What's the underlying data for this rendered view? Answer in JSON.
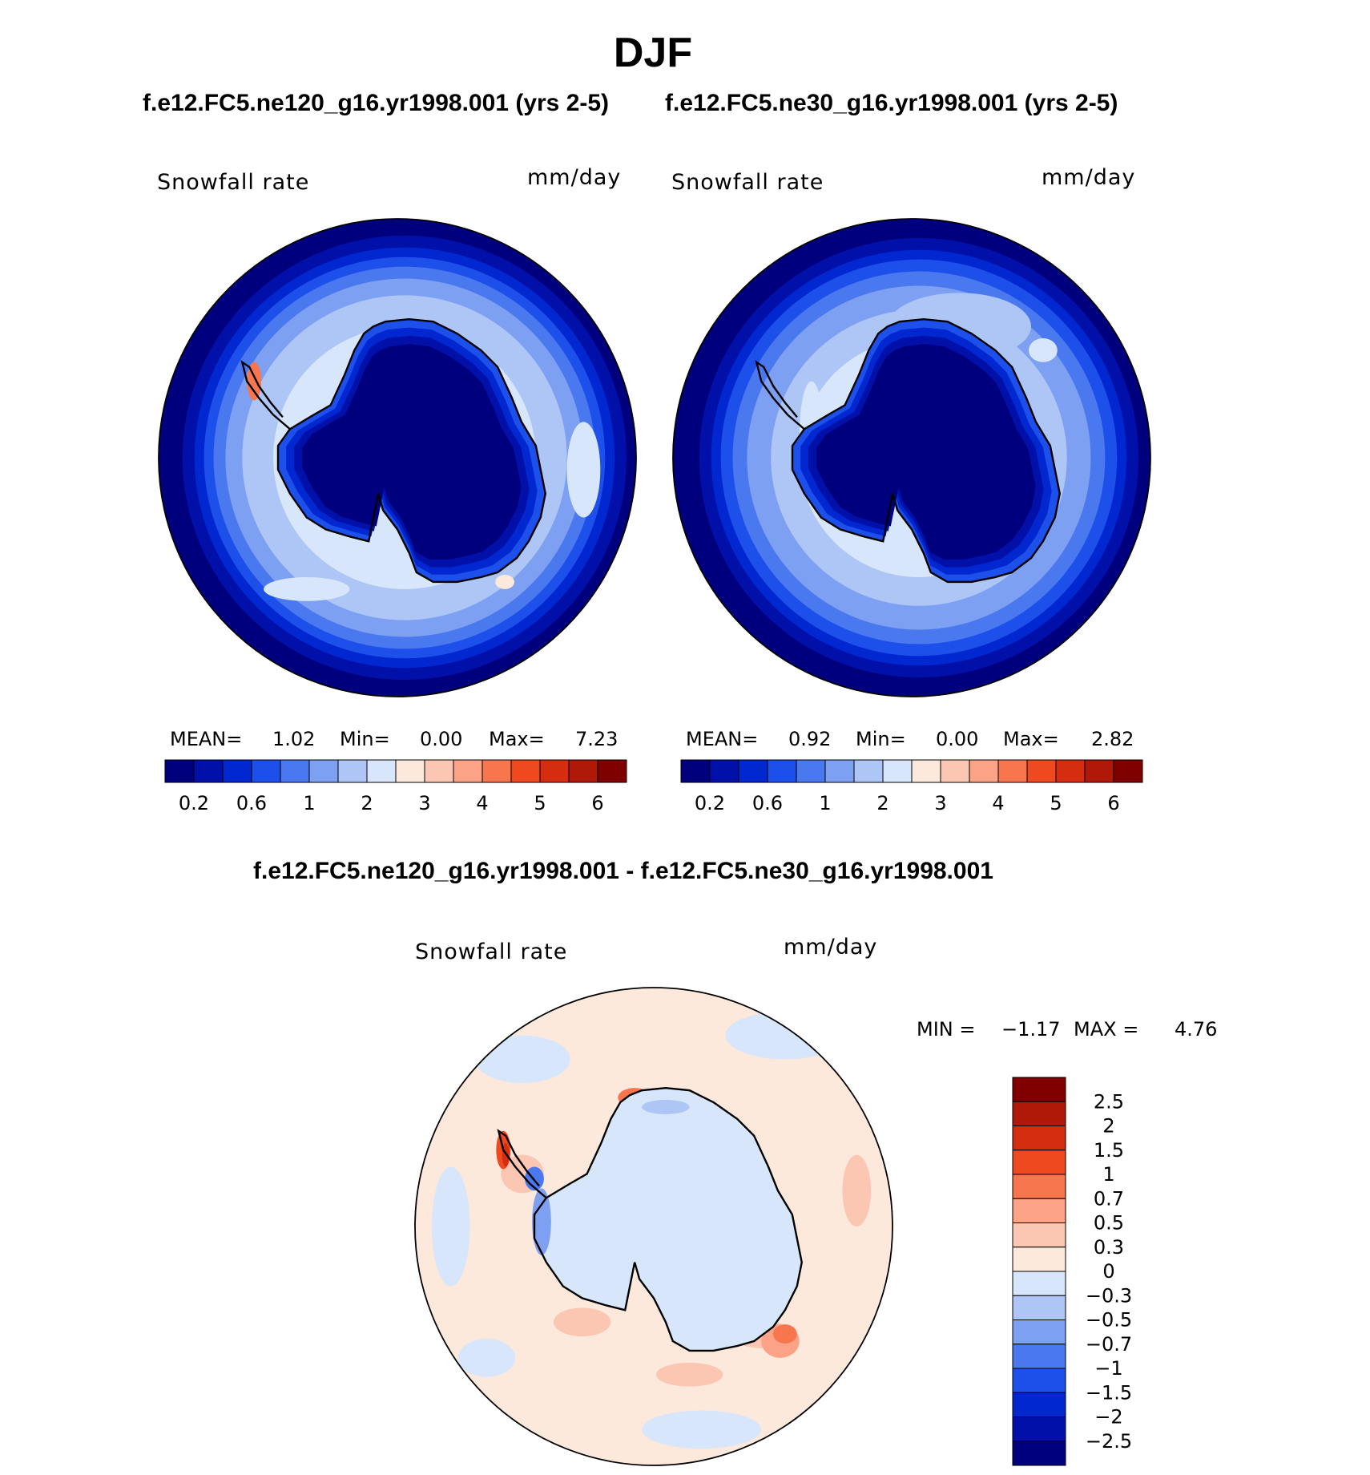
{
  "title": "DJF",
  "colors": {
    "abs_scale": [
      "#00007f",
      "#0010a8",
      "#0027d0",
      "#1d4fea",
      "#4a78ee",
      "#7ea0f2",
      "#adc6f6",
      "#d7e6fa",
      "#fde9dc",
      "#fcc7b2",
      "#fba287",
      "#f8764e",
      "#ef4a1f",
      "#d42d0f",
      "#b01807",
      "#800000"
    ],
    "diff_scale": [
      "#00007f",
      "#0010a8",
      "#0027d0",
      "#1d4fea",
      "#4a78ee",
      "#7ea0f2",
      "#adc6f6",
      "#d7e6fa",
      "#fde9dc",
      "#fcc7b2",
      "#fba287",
      "#f8764e",
      "#ef4a1f",
      "#d42d0f",
      "#b01807",
      "#800000"
    ],
    "coast": "#000000"
  },
  "chart_data": [
    {
      "type": "heatmap",
      "case_title": "f.e12.FC5.ne120_g16.yr1998.001 (yrs 2-5)",
      "variable_label": "Snowfall rate",
      "units": "mm/day",
      "stats": {
        "mean_label": "MEAN=",
        "mean": "1.02",
        "min_label": "Min=",
        "min": "0.00",
        "max_label": "Max=",
        "max": "7.23"
      },
      "colorbar_ticks": [
        "0.2",
        "0.6",
        "1",
        "2",
        "3",
        "4",
        "5",
        "6"
      ],
      "rings": [
        {
          "level": 0,
          "inner": 0.93
        },
        {
          "level": 1,
          "inner": 0.88
        },
        {
          "level": 2,
          "inner": 0.84
        },
        {
          "level": 3,
          "inner": 0.8
        },
        {
          "level": 4,
          "inner": 0.75
        },
        {
          "level": 5,
          "inner": 0.68
        },
        {
          "level": 6,
          "inner": 0.55
        }
      ],
      "blobs": [
        {
          "level": 7,
          "cx": 0.3,
          "cy": -0.05,
          "rx": 0.12,
          "ry": 0.1
        },
        {
          "level": 7,
          "cx": -0.38,
          "cy": 0.55,
          "rx": 0.18,
          "ry": 0.05
        },
        {
          "level": 7,
          "cx": 0.78,
          "cy": 0.05,
          "rx": 0.07,
          "ry": 0.2
        },
        {
          "level": 8,
          "cx": 0.45,
          "cy": 0.52,
          "rx": 0.04,
          "ry": 0.03
        },
        {
          "level": 11,
          "cx": -0.6,
          "cy": -0.32,
          "rx": 0.03,
          "ry": 0.08
        }
      ],
      "antarctic_levels": [
        3,
        2,
        1,
        0
      ]
    },
    {
      "type": "heatmap",
      "case_title": "f.e12.FC5.ne30_g16.yr1998.001 (yrs 2-5)",
      "variable_label": "Snowfall rate",
      "units": "mm/day",
      "stats": {
        "mean_label": "MEAN=",
        "mean": "0.92",
        "min_label": "Min=",
        "min": "0.00",
        "max_label": "Max=",
        "max": "2.82"
      },
      "colorbar_ticks": [
        "0.2",
        "0.6",
        "1",
        "2",
        "3",
        "4",
        "5",
        "6"
      ],
      "rings": [
        {
          "level": 0,
          "inner": 0.92
        },
        {
          "level": 1,
          "inner": 0.87
        },
        {
          "level": 2,
          "inner": 0.83
        },
        {
          "level": 3,
          "inner": 0.78
        },
        {
          "level": 4,
          "inner": 0.72
        },
        {
          "level": 5,
          "inner": 0.62
        },
        {
          "level": 6,
          "inner": 0.5
        }
      ],
      "blobs": [
        {
          "level": 6,
          "cx": 0.2,
          "cy": -0.55,
          "rx": 0.3,
          "ry": 0.14
        },
        {
          "level": 7,
          "cx": -0.42,
          "cy": -0.1,
          "rx": 0.05,
          "ry": 0.22
        },
        {
          "level": 7,
          "cx": 0.55,
          "cy": -0.45,
          "rx": 0.06,
          "ry": 0.05
        }
      ],
      "antarctic_levels": [
        3,
        2,
        1,
        0
      ]
    },
    {
      "type": "heatmap",
      "case_title": "f.e12.FC5.ne120_g16.yr1998.001 - f.e12.FC5.ne30_g16.yr1998.001",
      "variable_label": "Snowfall rate",
      "units": "mm/day",
      "stats": {
        "min_label": "MIN =",
        "min": "−1.17",
        "max_label": "MAX =",
        "max": "4.76"
      },
      "colorbar_ticks": [
        "2.5",
        "2",
        "1.5",
        "1",
        "0.7",
        "0.5",
        "0.3",
        "0",
        "−0.3",
        "−0.5",
        "−0.7",
        "−1",
        "−1.5",
        "−2",
        "−2.5"
      ],
      "background_level": 8,
      "blobs": [
        {
          "level": 7,
          "cx": 0.55,
          "cy": -0.8,
          "rx": 0.25,
          "ry": 0.1
        },
        {
          "level": 7,
          "cx": -0.55,
          "cy": -0.7,
          "rx": 0.2,
          "ry": 0.1
        },
        {
          "level": 7,
          "cx": -0.85,
          "cy": 0.0,
          "rx": 0.08,
          "ry": 0.25
        },
        {
          "level": 7,
          "cx": 0.2,
          "cy": 0.85,
          "rx": 0.25,
          "ry": 0.08
        },
        {
          "level": 7,
          "cx": -0.7,
          "cy": 0.55,
          "rx": 0.12,
          "ry": 0.08
        },
        {
          "level": 9,
          "cx": -0.55,
          "cy": -0.22,
          "rx": 0.09,
          "ry": 0.08
        },
        {
          "level": 9,
          "cx": 0.85,
          "cy": -0.15,
          "rx": 0.06,
          "ry": 0.15
        },
        {
          "level": 9,
          "cx": -0.3,
          "cy": 0.4,
          "rx": 0.12,
          "ry": 0.06
        },
        {
          "level": 9,
          "cx": 0.15,
          "cy": 0.62,
          "rx": 0.14,
          "ry": 0.05
        },
        {
          "level": 9,
          "cx": 0.45,
          "cy": 0.45,
          "rx": 0.12,
          "ry": 0.06
        },
        {
          "level": 10,
          "cx": 0.53,
          "cy": 0.48,
          "rx": 0.08,
          "ry": 0.07
        },
        {
          "level": 11,
          "cx": 0.55,
          "cy": 0.45,
          "rx": 0.05,
          "ry": 0.04
        },
        {
          "level": 11,
          "cx": -0.08,
          "cy": -0.54,
          "rx": 0.07,
          "ry": 0.04
        },
        {
          "level": 12,
          "cx": -0.63,
          "cy": -0.32,
          "rx": 0.03,
          "ry": 0.08
        },
        {
          "level": 13,
          "cx": -0.62,
          "cy": -0.3,
          "rx": 0.015,
          "ry": 0.05
        }
      ],
      "antarctic_levels": [
        7
      ],
      "antarctic_blobs": [
        {
          "level": 5,
          "cx": -0.47,
          "cy": -0.02,
          "rx": 0.04,
          "ry": 0.14
        },
        {
          "level": 4,
          "cx": -0.5,
          "cy": -0.2,
          "rx": 0.04,
          "ry": 0.05
        },
        {
          "level": 6,
          "cx": 0.05,
          "cy": -0.5,
          "rx": 0.1,
          "ry": 0.03
        }
      ]
    }
  ]
}
